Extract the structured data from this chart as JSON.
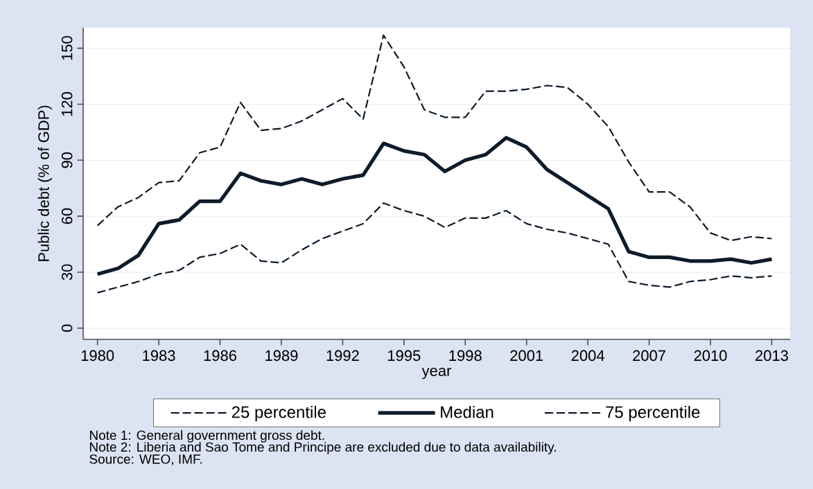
{
  "chart_data": {
    "type": "line",
    "xlabel": "year",
    "ylabel": "Public debt (% of GDP)",
    "x": [
      1980,
      1981,
      1982,
      1983,
      1984,
      1985,
      1986,
      1987,
      1988,
      1989,
      1990,
      1991,
      1992,
      1993,
      1994,
      1995,
      1996,
      1997,
      1998,
      1999,
      2000,
      2001,
      2002,
      2003,
      2004,
      2005,
      2006,
      2007,
      2008,
      2009,
      2010,
      2011,
      2012,
      2013
    ],
    "series": [
      {
        "name": "25 percentile",
        "color": "#0d1b2a",
        "line_style": "dashed",
        "values": [
          19,
          22,
          25,
          29,
          31,
          38,
          40,
          45,
          36,
          35,
          42,
          48,
          52,
          56,
          67,
          63,
          60,
          54,
          59,
          59,
          63,
          56,
          53,
          51,
          48,
          45,
          25,
          23,
          22,
          25,
          26,
          28,
          27,
          28
        ]
      },
      {
        "name": "Median",
        "color": "#0d1b2a",
        "line_style": "solid",
        "values": [
          29,
          32,
          39,
          56,
          58,
          68,
          68,
          83,
          79,
          77,
          80,
          77,
          80,
          82,
          99,
          95,
          93,
          84,
          90,
          93,
          102,
          97,
          85,
          78,
          71,
          64,
          41,
          38,
          38,
          36,
          36,
          37,
          35,
          37
        ]
      },
      {
        "name": "75 percentile",
        "color": "#0d1b2a",
        "line_style": "dashed",
        "values": [
          55,
          65,
          70,
          78,
          79,
          94,
          97,
          121,
          106,
          107,
          111,
          117,
          123,
          112,
          157,
          140,
          117,
          113,
          113,
          127,
          127,
          128,
          130,
          129,
          120,
          108,
          89,
          73,
          73,
          65,
          51,
          47,
          49,
          48
        ]
      }
    ],
    "xlim": [
      1979.3,
      2013.9
    ],
    "ylim": [
      -6,
      161
    ],
    "xticks": [
      1980,
      1983,
      1986,
      1989,
      1992,
      1995,
      1998,
      2001,
      2004,
      2007,
      2010,
      2013
    ],
    "yticks": [
      0,
      30,
      60,
      90,
      120,
      150
    ],
    "grid": "y",
    "legend": "bottom",
    "marker": "none",
    "annotations": [
      "Note 1: General government gross debt.",
      "Note 2: Liberia and Sao Tome and Principe are excluded due to data availability.",
      "Source: WEO, IMF."
    ]
  }
}
